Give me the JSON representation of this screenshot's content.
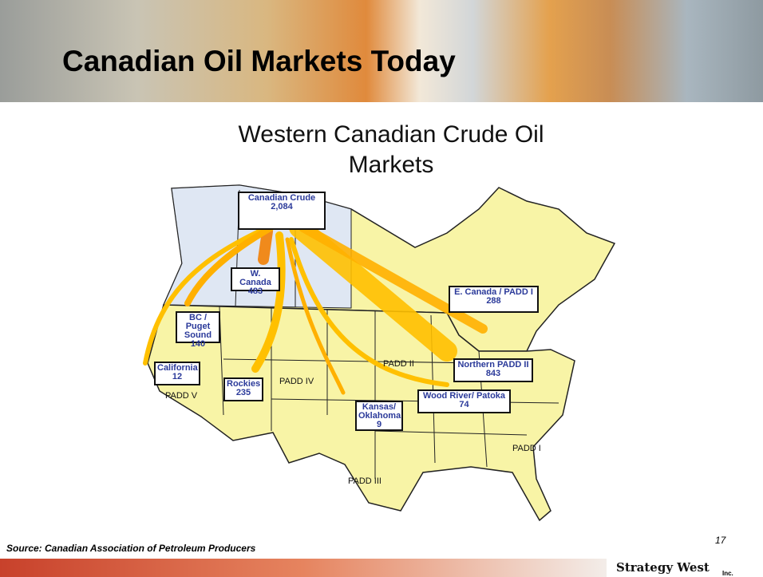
{
  "header": {
    "title": "Canadian Oil Markets Today"
  },
  "map": {
    "title": "Western Canadian Crude Oil Markets",
    "nodes": [
      {
        "label": "Canadian Crude",
        "value": "2,084"
      },
      {
        "label": "W. Canada",
        "value": "483"
      },
      {
        "label": "BC / Puget Sound",
        "value": "140"
      },
      {
        "label": "California",
        "value": "12"
      },
      {
        "label": "Rockies",
        "value": "235"
      },
      {
        "label": "Kansas/ Oklahoma",
        "value": "9"
      },
      {
        "label": "Wood River/ Patoka",
        "value": "74"
      },
      {
        "label": "Northern PADD II",
        "value": "843"
      },
      {
        "label": "E. Canada / PADD I",
        "value": "288"
      }
    ],
    "regions": [
      "PADD II",
      "PADD IV",
      "PADD V",
      "PADD III",
      "PADD I"
    ]
  },
  "footer": {
    "source": "Source: Canadian Association of Petroleum Producers",
    "page": "17",
    "logo": "Strategy West",
    "logo_sub": "Inc."
  }
}
